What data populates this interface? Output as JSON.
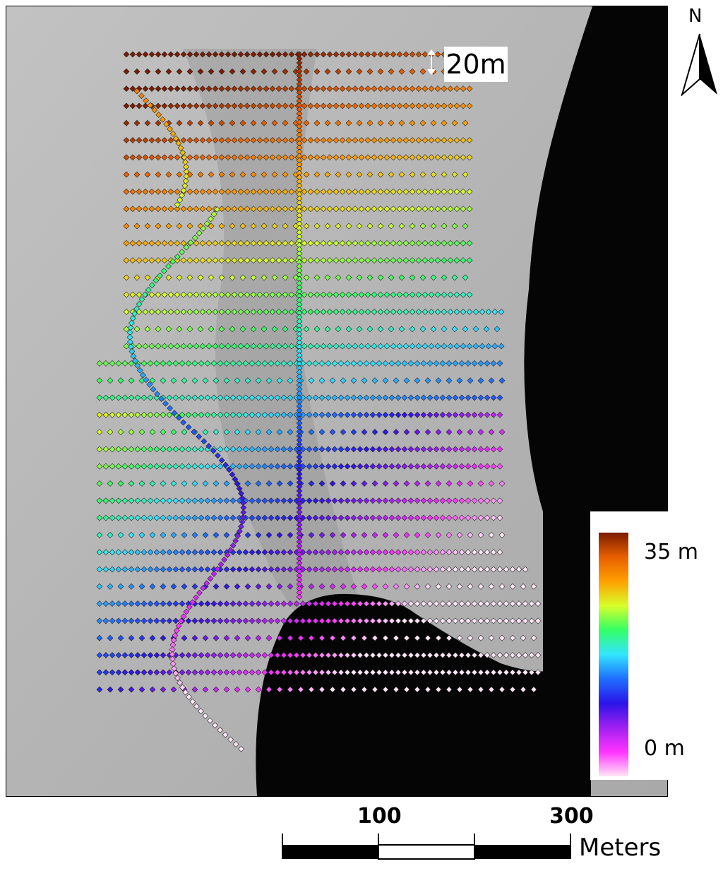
{
  "map": {
    "spacing_label": "20m",
    "north_label": "N",
    "legend": {
      "max_label": "35 m",
      "min_label": "0 m",
      "colormap": [
        "#ffe6f6",
        "#ff33ff",
        "#a020f0",
        "#2b14e8",
        "#1e6eff",
        "#33e5ff",
        "#33ff66",
        "#d8ff2a",
        "#ffa000",
        "#e85f00",
        "#7a1b00"
      ]
    },
    "scale_bar": {
      "ticks": [
        "100",
        "300"
      ],
      "unit": "Meters"
    }
  }
}
